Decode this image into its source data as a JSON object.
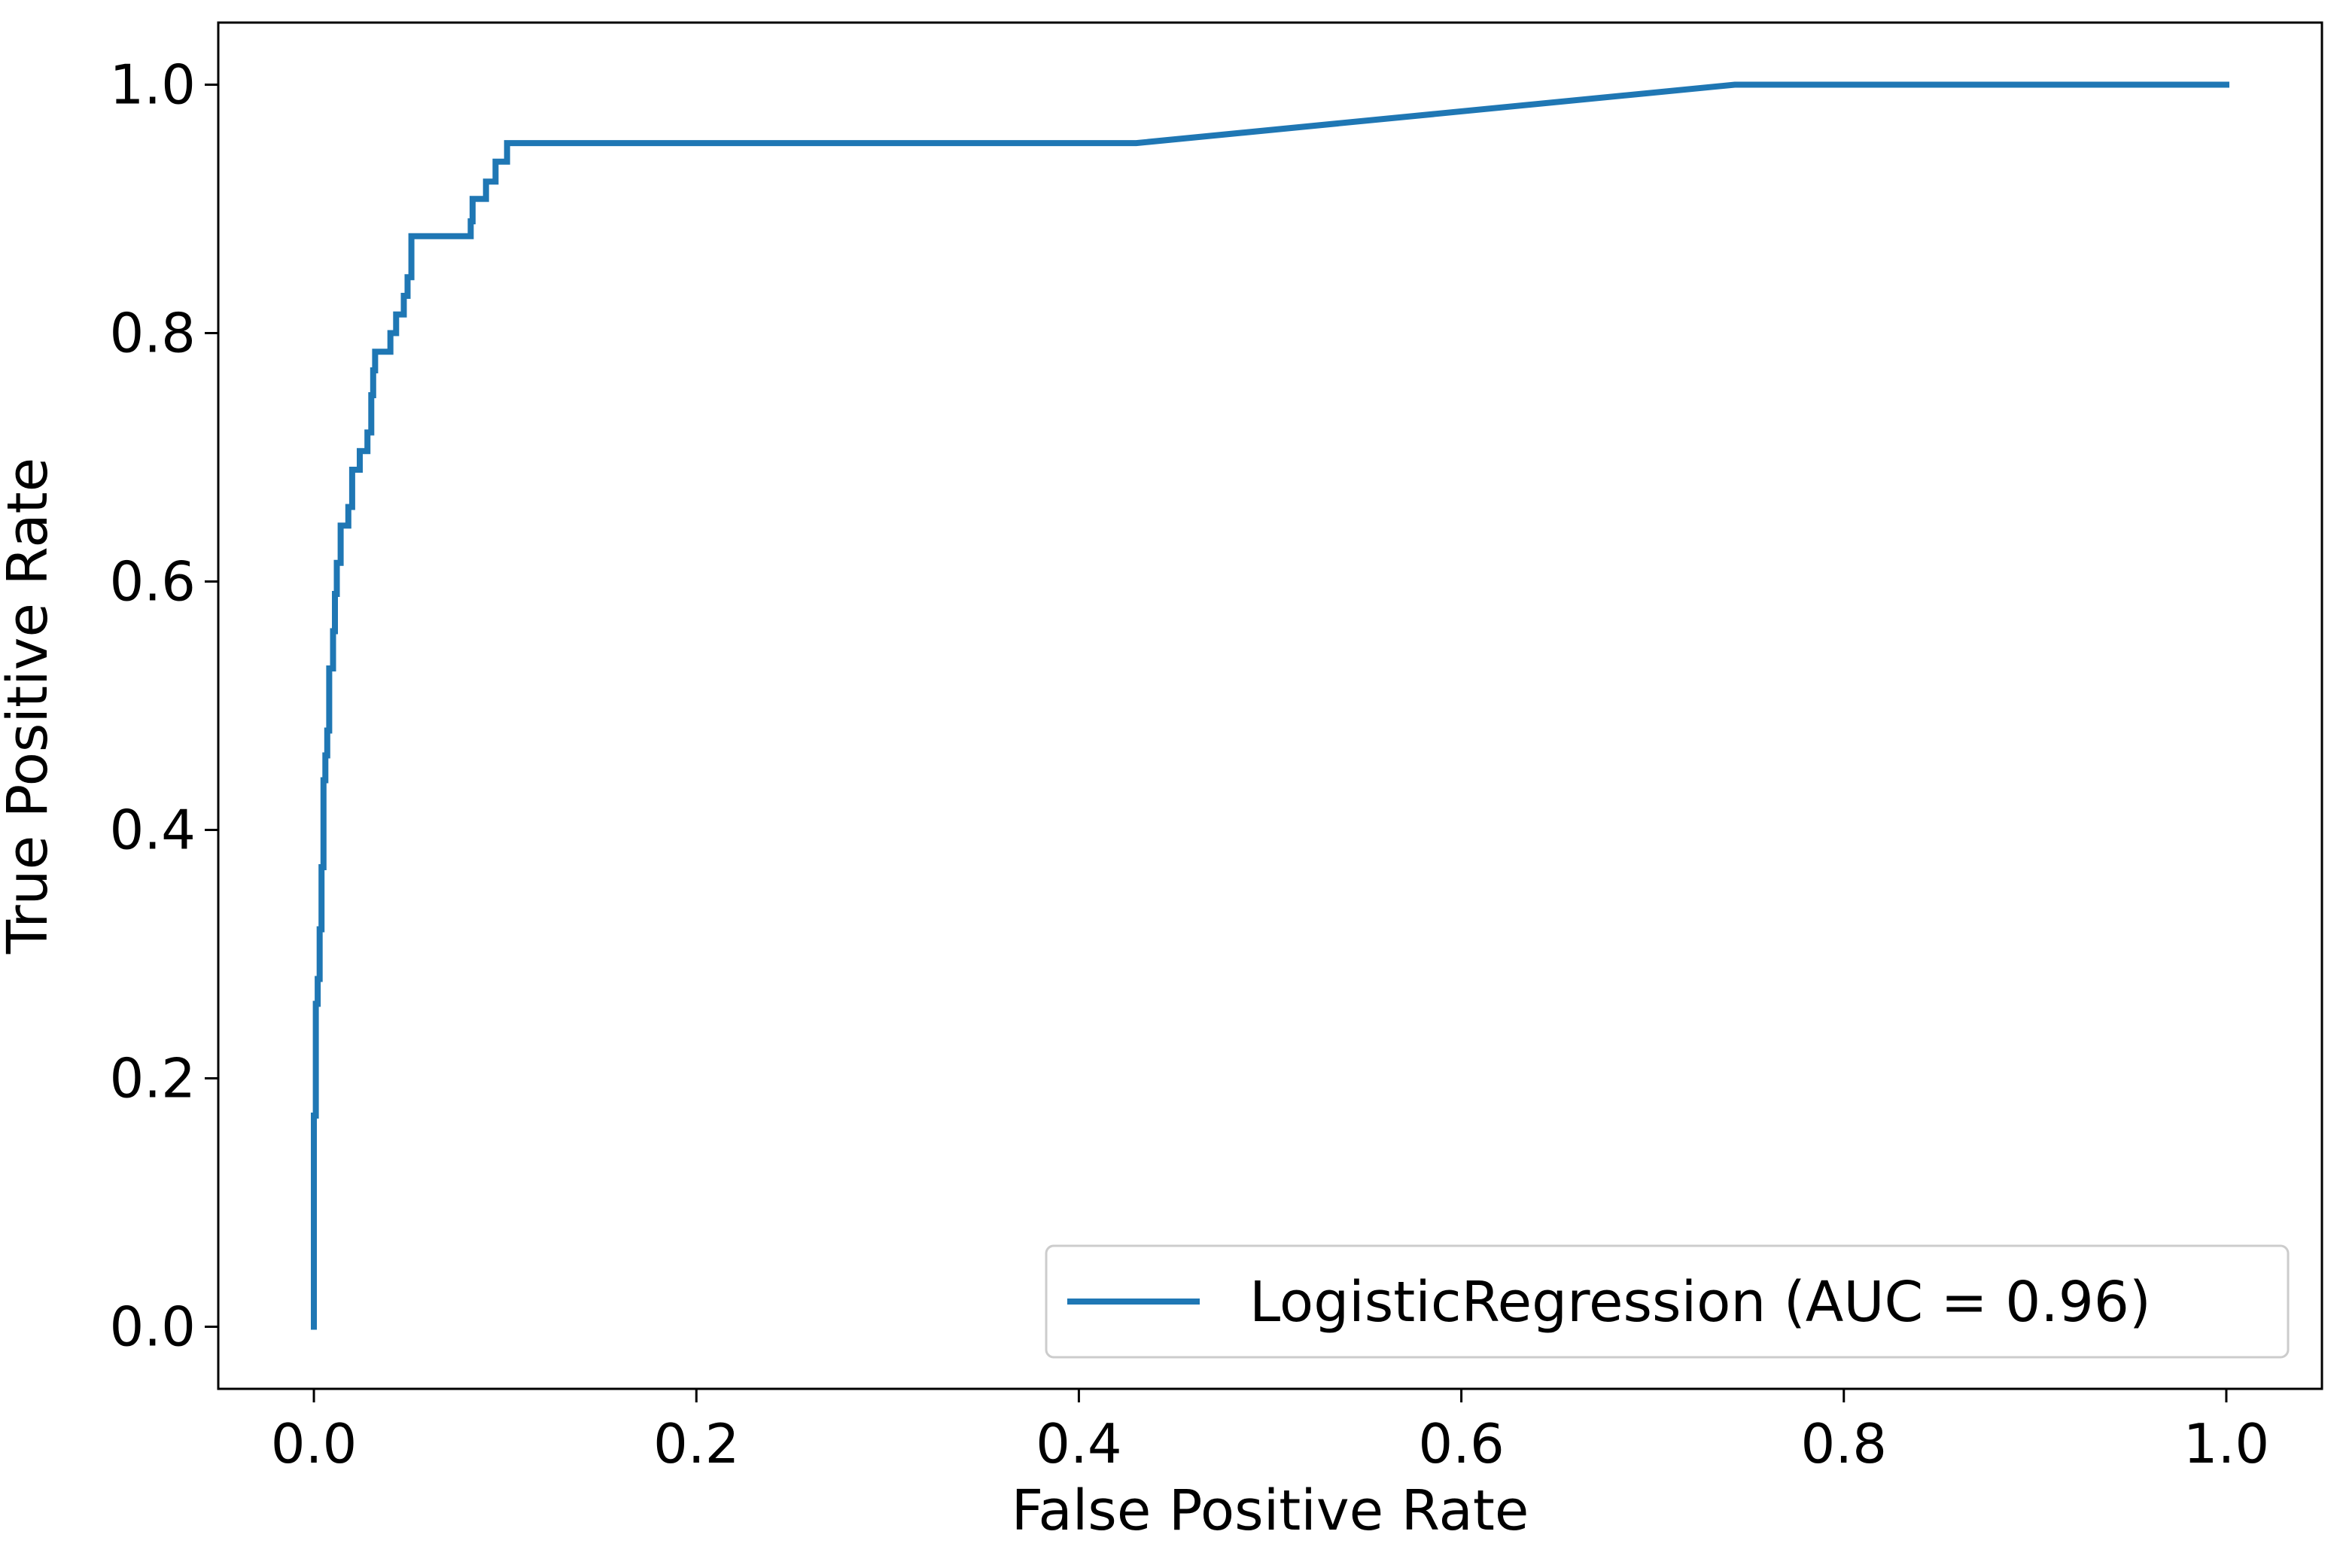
{
  "chart_data": {
    "type": "line",
    "title": "",
    "xlabel": "False Positive Rate",
    "ylabel": "True Positive Rate",
    "xlim": [
      -0.05,
      1.05
    ],
    "ylim": [
      -0.05,
      1.05
    ],
    "xticks": [
      {
        "value": 0.0,
        "label": "0.0"
      },
      {
        "value": 0.2,
        "label": "0.2"
      },
      {
        "value": 0.4,
        "label": "0.4"
      },
      {
        "value": 0.6,
        "label": "0.6"
      },
      {
        "value": 0.8,
        "label": "0.8"
      },
      {
        "value": 1.0,
        "label": "1.0"
      }
    ],
    "yticks": [
      {
        "value": 0.0,
        "label": "0.0"
      },
      {
        "value": 0.2,
        "label": "0.2"
      },
      {
        "value": 0.4,
        "label": "0.4"
      },
      {
        "value": 0.6,
        "label": "0.6"
      },
      {
        "value": 0.8,
        "label": "0.8"
      },
      {
        "value": 1.0,
        "label": "1.0"
      }
    ],
    "grid": false,
    "legend_position": "lower right",
    "series": [
      {
        "name": "LogisticRegression (AUC = 0.96)",
        "color": "#1f77b4",
        "x": [
          0.0,
          0.0,
          0.001,
          0.001,
          0.002,
          0.002,
          0.003,
          0.003,
          0.004,
          0.004,
          0.005,
          0.005,
          0.006,
          0.006,
          0.007,
          0.007,
          0.008,
          0.008,
          0.01,
          0.01,
          0.011,
          0.011,
          0.012,
          0.012,
          0.014,
          0.014,
          0.018,
          0.018,
          0.02,
          0.02,
          0.024,
          0.024,
          0.028,
          0.028,
          0.03,
          0.03,
          0.031,
          0.031,
          0.032,
          0.032,
          0.04,
          0.04,
          0.043,
          0.043,
          0.047,
          0.047,
          0.049,
          0.049,
          0.051,
          0.051,
          0.082,
          0.082,
          0.083,
          0.083,
          0.09,
          0.09,
          0.095,
          0.095,
          0.101,
          0.101,
          0.43,
          0.743,
          1.0
        ],
        "y": [
          0.0,
          0.17,
          0.17,
          0.26,
          0.26,
          0.28,
          0.28,
          0.32,
          0.32,
          0.37,
          0.37,
          0.44,
          0.44,
          0.46,
          0.46,
          0.48,
          0.48,
          0.53,
          0.53,
          0.56,
          0.56,
          0.59,
          0.59,
          0.615,
          0.615,
          0.645,
          0.645,
          0.66,
          0.66,
          0.69,
          0.69,
          0.705,
          0.705,
          0.72,
          0.72,
          0.75,
          0.75,
          0.77,
          0.77,
          0.785,
          0.785,
          0.8,
          0.8,
          0.815,
          0.815,
          0.83,
          0.83,
          0.845,
          0.845,
          0.878,
          0.878,
          0.89,
          0.89,
          0.908,
          0.908,
          0.922,
          0.922,
          0.938,
          0.938,
          0.953,
          0.953,
          1.0,
          1.0
        ]
      }
    ]
  }
}
